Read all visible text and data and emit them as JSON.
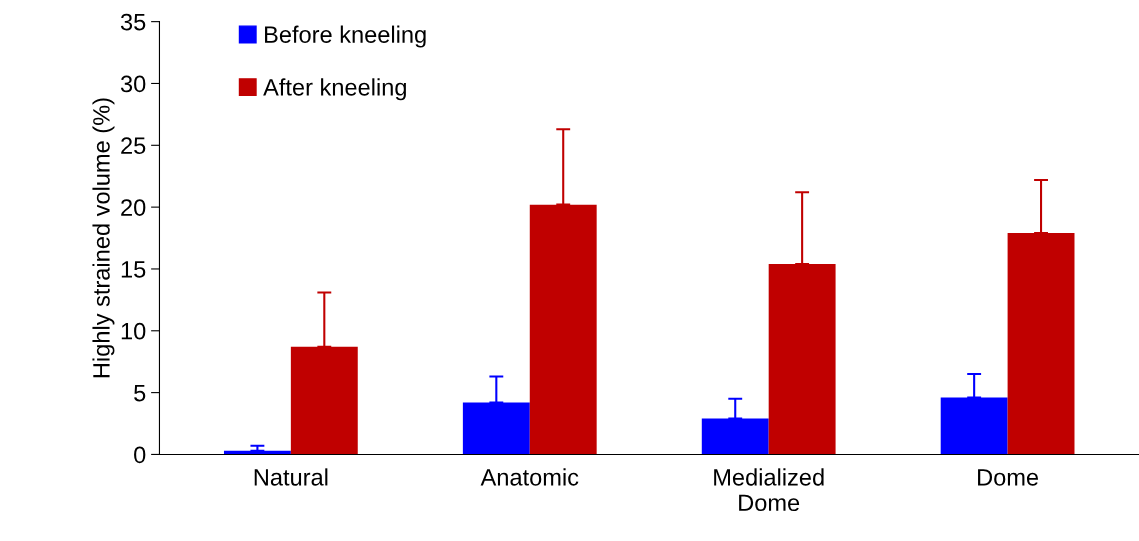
{
  "chart_data": {
    "type": "bar",
    "ylabel": "Highly strained volume (%)",
    "categories": [
      "Natural",
      "Anatomic",
      "Medialized\nDome",
      "Dome"
    ],
    "series": [
      {
        "name": "Before kneeling",
        "color": "#0000ff",
        "values": [
          0.3,
          4.2,
          2.9,
          4.6
        ],
        "errors": [
          [
            0.3,
            0.7
          ],
          [
            4.2,
            6.3
          ],
          [
            2.9,
            4.5
          ],
          [
            4.6,
            6.5
          ]
        ]
      },
      {
        "name": "After kneeling",
        "color": "#c00000",
        "values": [
          8.7,
          20.2,
          15.4,
          17.9
        ],
        "errors": [
          [
            8.7,
            13.1
          ],
          [
            20.2,
            26.3
          ],
          [
            15.4,
            21.2
          ],
          [
            17.9,
            22.2
          ]
        ]
      }
    ],
    "ylim": [
      0,
      35
    ],
    "yticks": [
      0,
      5,
      10,
      15,
      20,
      25,
      30,
      35
    ],
    "grid": false,
    "legend": "top left"
  }
}
